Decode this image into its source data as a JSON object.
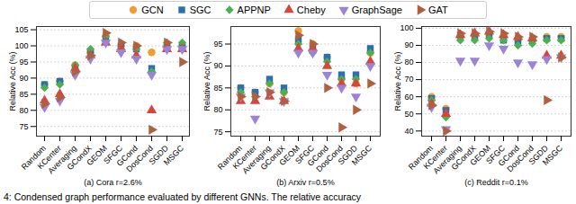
{
  "caption": "4: Condensed graph performance evaluated by different GNNs. The relative accuracy",
  "chart_data": [
    {
      "type": "scatter",
      "xlabel": "(a) Cora r=2.6%",
      "ylabel": "Relative Acc (%)",
      "categories": [
        "Random",
        "KCenter",
        "Averaging",
        "GCondX",
        "GEOM",
        "SFGC",
        "GCond",
        "DosCond",
        "SGDD",
        "MSGC"
      ],
      "ylim": [
        72,
        106
      ],
      "yticks": [
        75,
        80,
        85,
        90,
        95,
        100,
        105
      ],
      "grid": true,
      "series": [
        {
          "name": "GCN",
          "color": "#f39c2f",
          "marker": "circle",
          "values": [
            88,
            89,
            94,
            98,
            103,
            100,
            100,
            98,
            100,
            100
          ]
        },
        {
          "name": "SGC",
          "color": "#2a6fb5",
          "marker": "square",
          "values": [
            88,
            89,
            93,
            98,
            102,
            100,
            99,
            93,
            100,
            100
          ]
        },
        {
          "name": "APPNP",
          "color": "#4caf50",
          "marker": "diamond",
          "values": [
            87,
            88,
            94,
            99,
            103,
            99,
            99,
            92,
            101,
            101
          ]
        },
        {
          "name": "Cheby",
          "color": "#d9453b",
          "marker": "triangle-up",
          "values": [
            83,
            85,
            93,
            97,
            101,
            99,
            97,
            80,
            99,
            99
          ]
        },
        {
          "name": "GraphSage",
          "color": "#9b84d6",
          "marker": "triangle-down",
          "values": [
            81,
            83,
            91,
            96,
            101,
            98,
            96,
            91,
            99,
            99
          ]
        },
        {
          "name": "GAT",
          "color": "#b0603f",
          "marker": "triangle-right",
          "values": [
            82,
            84,
            92,
            97,
            104,
            101,
            100,
            74,
            101,
            95
          ]
        }
      ]
    },
    {
      "type": "scatter",
      "xlabel": "(b) Arxiv r=0.5%",
      "ylabel": "Relative Acc (%)",
      "categories": [
        "Random",
        "KCenter",
        "Averaging",
        "GCondX",
        "GEOM",
        "SFGC",
        "GCond",
        "DosCond",
        "SGDD",
        "MSGC"
      ],
      "ylim": [
        74,
        99
      ],
      "yticks": [
        75,
        80,
        85,
        90,
        95
      ],
      "grid": true,
      "series": [
        {
          "name": "GCN",
          "color": "#f39c2f",
          "marker": "circle",
          "values": [
            85,
            84,
            86,
            84,
            98,
            95,
            92,
            87,
            86,
            93
          ]
        },
        {
          "name": "SGC",
          "color": "#2a6fb5",
          "marker": "square",
          "values": [
            85,
            84,
            87,
            85,
            96,
            94,
            92,
            88,
            88,
            94
          ]
        },
        {
          "name": "APPNP",
          "color": "#4caf50",
          "marker": "diamond",
          "values": [
            84,
            83,
            86,
            84,
            95,
            93,
            91,
            87,
            87,
            93
          ]
        },
        {
          "name": "Cheby",
          "color": "#d9453b",
          "marker": "triangle-up",
          "values": [
            82,
            82,
            83,
            82,
            94,
            94,
            90,
            86,
            86,
            91
          ]
        },
        {
          "name": "GraphSage",
          "color": "#9b84d6",
          "marker": "triangle-down",
          "values": [
            83,
            78,
            84,
            82,
            93,
            93,
            88,
            85,
            83,
            90
          ]
        },
        {
          "name": "GAT",
          "color": "#b0603f",
          "marker": "triangle-right",
          "values": [
            83,
            83,
            84,
            82,
            97,
            95,
            85,
            76,
            80,
            86
          ]
        }
      ]
    },
    {
      "type": "scatter",
      "xlabel": "(c) Reddit r=0.1%",
      "ylabel": "Relative Acc (%)",
      "categories": [
        "Random",
        "KCenter",
        "Averaging",
        "GCondX",
        "GEOM",
        "SFGC",
        "GCond",
        "DosCond",
        "SGDD",
        "MSGC"
      ],
      "ylim": [
        37,
        101
      ],
      "yticks": [
        40,
        50,
        60,
        70,
        80,
        90,
        100
      ],
      "grid": true,
      "series": [
        {
          "name": "GCN",
          "color": "#f39c2f",
          "marker": "circle",
          "values": [
            60,
            53,
            95,
            96,
            97,
            95,
            93,
            93,
            95,
            95
          ]
        },
        {
          "name": "SGC",
          "color": "#2a6fb5",
          "marker": "square",
          "values": [
            59,
            52,
            96,
            95,
            96,
            93,
            92,
            93,
            94,
            94
          ]
        },
        {
          "name": "APPNP",
          "color": "#4caf50",
          "marker": "diamond",
          "values": [
            58,
            48,
            93,
            93,
            94,
            93,
            90,
            91,
            93,
            93
          ]
        },
        {
          "name": "Cheby",
          "color": "#d9453b",
          "marker": "triangle-up",
          "values": [
            56,
            50,
            96,
            97,
            98,
            96,
            95,
            94,
            84,
            84
          ]
        },
        {
          "name": "GraphSage",
          "color": "#9b84d6",
          "marker": "triangle-down",
          "values": [
            54,
            41,
            81,
            81,
            90,
            88,
            80,
            79,
            82,
            83
          ]
        },
        {
          "name": "GAT",
          "color": "#b0603f",
          "marker": "triangle-right",
          "values": [
            55,
            40,
            97,
            97,
            98,
            97,
            95,
            95,
            58,
            83
          ]
        }
      ]
    }
  ]
}
